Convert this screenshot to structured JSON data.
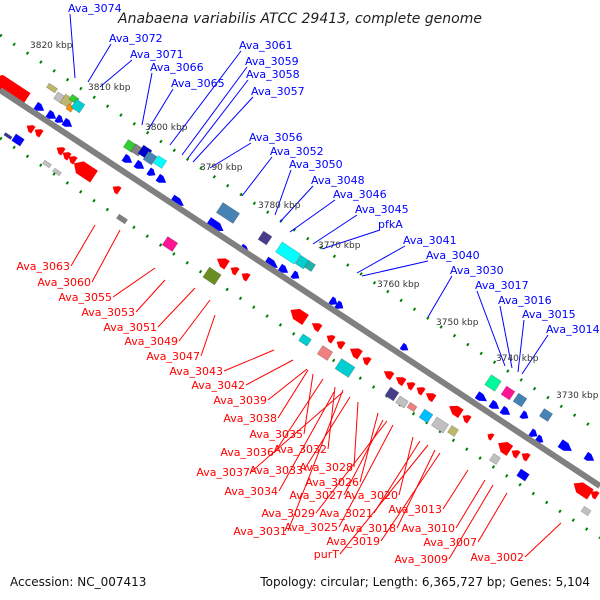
{
  "title": "Anabaena variabilis ATCC 29413, complete genome",
  "footer": {
    "accession": "Accession: NC_007413",
    "summary": "Topology: circular; Length: 6,365,727 bp; Genes: 5,104"
  },
  "ruler_labels": [
    "3820 kbp",
    "3810 kbp",
    "3800 kbp",
    "3790 kbp",
    "3780 kbp",
    "3770 kbp",
    "3760 kbp",
    "3750 kbp",
    "3740 kbp",
    "3730 kbp"
  ],
  "forward_gene_labels": [
    "Ava_3074",
    "Ava_3072",
    "Ava_3071",
    "Ava_3066",
    "Ava_3065",
    "Ava_3061",
    "Ava_3059",
    "Ava_3058",
    "Ava_3057",
    "Ava_3056",
    "Ava_3052",
    "Ava_3050",
    "Ava_3048",
    "Ava_3046",
    "Ava_3045",
    "pfkA",
    "Ava_3041",
    "Ava_3040",
    "Ava_3030",
    "Ava_3017",
    "Ava_3016",
    "Ava_3015",
    "Ava_3014"
  ],
  "reverse_gene_labels": [
    "Ava_3063",
    "Ava_3060",
    "Ava_3055",
    "Ava_3053",
    "Ava_3051",
    "Ava_3049",
    "Ava_3047",
    "Ava_3043",
    "Ava_3042",
    "Ava_3039",
    "Ava_3038",
    "Ava_3035",
    "Ava_3036",
    "Ava_3032",
    "Ava_3037",
    "Ava_3033",
    "Ava_3028",
    "Ava_3034",
    "Ava_3026",
    "Ava_3027",
    "Ava_3020",
    "Ava_3029",
    "Ava_3021",
    "Ava_3031",
    "Ava_3025",
    "Ava_3018",
    "Ava_3019",
    "purT",
    "Ava_3013",
    "Ava_3010",
    "Ava_3009",
    "Ava_3007",
    "Ava_3002"
  ],
  "colors": {
    "forward": "#0000ff",
    "reverse": "#ff0000",
    "backbone": "#808080",
    "ruler": "#008000"
  }
}
